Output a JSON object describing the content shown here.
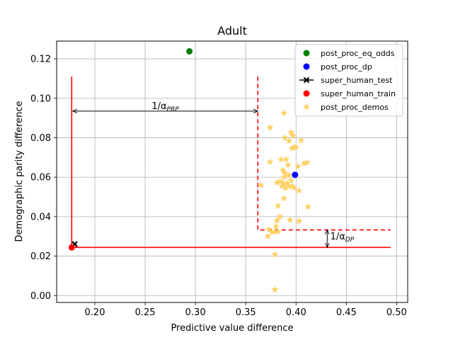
{
  "chart_data": {
    "type": "scatter",
    "title": "Adult",
    "xlabel": "Predictive value difference",
    "ylabel": "Demographic parity difference",
    "xlim": [
      0.162,
      0.511
    ],
    "ylim": [
      -0.0035,
      0.129
    ],
    "grid": true,
    "legend_placement": "top-right",
    "x_ticks": [
      {
        "value": 0.2,
        "label": "0.20"
      },
      {
        "value": 0.25,
        "label": "0.25"
      },
      {
        "value": 0.3,
        "label": "0.30"
      },
      {
        "value": 0.35,
        "label": "0.35"
      },
      {
        "value": 0.4,
        "label": "0.40"
      },
      {
        "value": 0.45,
        "label": "0.45"
      },
      {
        "value": 0.5,
        "label": "0.50"
      }
    ],
    "y_ticks": [
      {
        "value": 0.0,
        "label": "0.00"
      },
      {
        "value": 0.02,
        "label": "0.02"
      },
      {
        "value": 0.04,
        "label": "0.04"
      },
      {
        "value": 0.06,
        "label": "0.06"
      },
      {
        "value": 0.08,
        "label": "0.08"
      },
      {
        "value": 0.1,
        "label": "0.10"
      },
      {
        "value": 0.12,
        "label": "0.12"
      }
    ],
    "series": [
      {
        "name": "post_proc_eq_odds",
        "marker": "circle",
        "color": "#008000",
        "points": [
          [
            0.294,
            0.1238
          ]
        ]
      },
      {
        "name": "post_proc_dp",
        "marker": "circle",
        "color": "#0000ff",
        "points": [
          [
            0.399,
            0.0612
          ]
        ]
      },
      {
        "name": "super_human_test",
        "marker": "x",
        "color": "#000000",
        "points": [
          [
            0.18,
            0.0261
          ]
        ]
      },
      {
        "name": "super_human_train",
        "marker": "circle",
        "color": "#ff0000",
        "points": [
          [
            0.177,
            0.0244
          ]
        ]
      },
      {
        "name": "post_proc_demos",
        "marker": "star",
        "color": "#ffd166",
        "points": [
          [
            0.388,
            0.0925
          ],
          [
            0.374,
            0.0852
          ],
          [
            0.395,
            0.0827
          ],
          [
            0.397,
            0.081
          ],
          [
            0.389,
            0.08
          ],
          [
            0.393,
            0.0784
          ],
          [
            0.405,
            0.0786
          ],
          [
            0.398,
            0.0752
          ],
          [
            0.396,
            0.0746
          ],
          [
            0.4,
            0.0752
          ],
          [
            0.39,
            0.069
          ],
          [
            0.385,
            0.069
          ],
          [
            0.374,
            0.0677
          ],
          [
            0.408,
            0.067
          ],
          [
            0.411,
            0.0675
          ],
          [
            0.392,
            0.0662
          ],
          [
            0.402,
            0.0655
          ],
          [
            0.387,
            0.0635
          ],
          [
            0.389,
            0.062
          ],
          [
            0.393,
            0.061
          ],
          [
            0.388,
            0.06
          ],
          [
            0.384,
            0.0578
          ],
          [
            0.395,
            0.0583
          ],
          [
            0.381,
            0.0572
          ],
          [
            0.387,
            0.057
          ],
          [
            0.391,
            0.057
          ],
          [
            0.386,
            0.0555
          ],
          [
            0.393,
            0.0553
          ],
          [
            0.398,
            0.0546
          ],
          [
            0.396,
            0.0555
          ],
          [
            0.389,
            0.0545
          ],
          [
            0.403,
            0.0532
          ],
          [
            0.365,
            0.056
          ],
          [
            0.388,
            0.0493
          ],
          [
            0.382,
            0.0455
          ],
          [
            0.412,
            0.045
          ],
          [
            0.384,
            0.04
          ],
          [
            0.381,
            0.038
          ],
          [
            0.394,
            0.0383
          ],
          [
            0.403,
            0.0378
          ],
          [
            0.38,
            0.035
          ],
          [
            0.373,
            0.0335
          ],
          [
            0.376,
            0.0322
          ],
          [
            0.379,
            0.0322
          ],
          [
            0.382,
            0.0325
          ],
          [
            0.372,
            0.03
          ],
          [
            0.379,
            0.0208
          ],
          [
            0.379,
            0.003
          ]
        ]
      }
    ],
    "reference_lines": [
      {
        "style": "solid",
        "color": "#ff0000",
        "points": [
          [
            0.177,
            0.111
          ],
          [
            0.177,
            0.0244
          ],
          [
            0.494,
            0.0244
          ]
        ]
      },
      {
        "style": "dashed",
        "color": "#ff0000",
        "points": [
          [
            0.362,
            0.111
          ],
          [
            0.362,
            0.0333
          ],
          [
            0.494,
            0.0333
          ]
        ]
      }
    ],
    "annotations": [
      {
        "label_base": "1/α",
        "label_sub": "PRP",
        "text_at": [
          0.27,
          0.0945
        ],
        "arrow": {
          "type": "double",
          "from": [
            0.178,
            0.0935
          ],
          "to": [
            0.362,
            0.0935
          ]
        }
      },
      {
        "label_base": "1/α",
        "label_sub": "DP",
        "text_at": [
          0.434,
          0.0285
        ],
        "arrow": {
          "type": "double",
          "from": [
            0.431,
            0.0333
          ],
          "to": [
            0.431,
            0.0244
          ]
        }
      }
    ]
  }
}
